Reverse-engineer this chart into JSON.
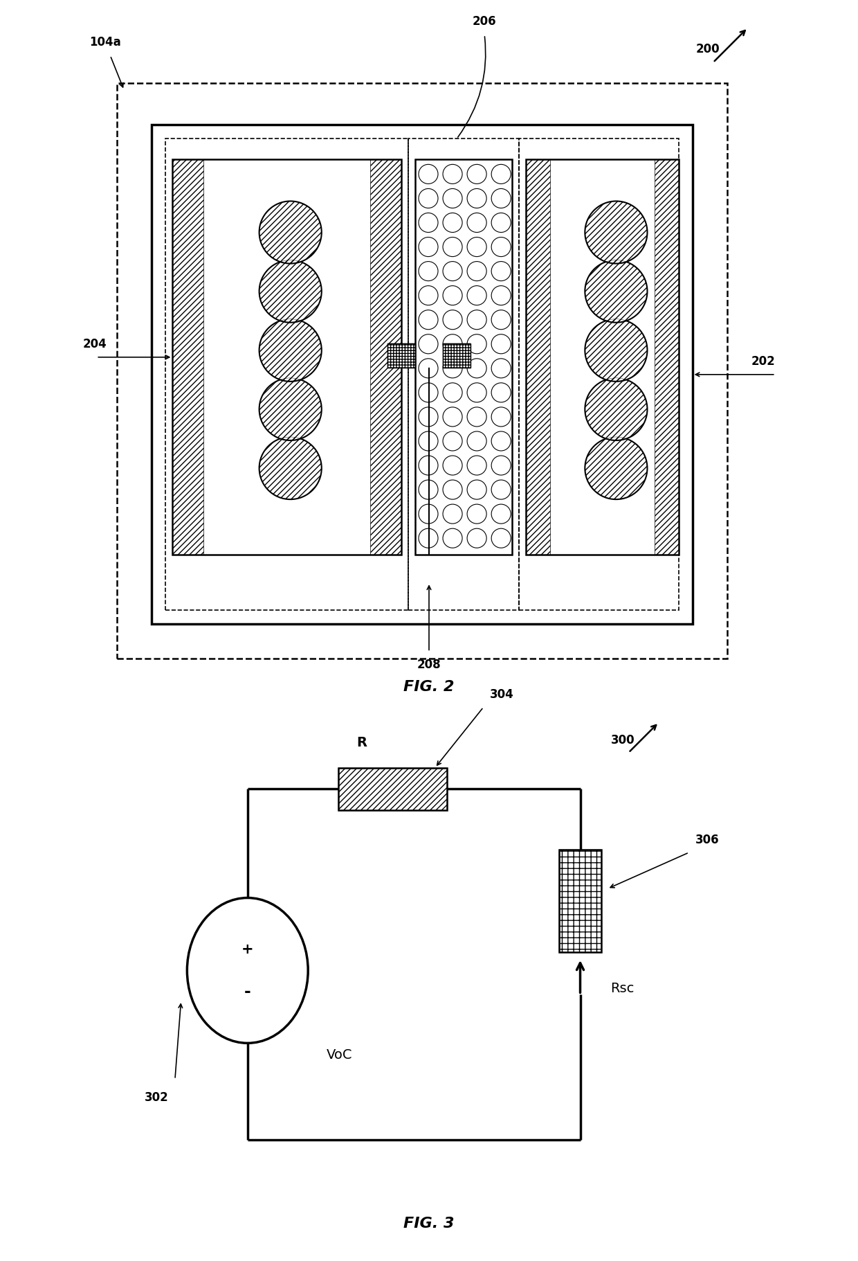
{
  "fig_width": 12.4,
  "fig_height": 18.21,
  "bg_color": "#ffffff",
  "line_color": "#000000",
  "fig2": {
    "label": "FIG. 2",
    "ref_200": "200",
    "ref_104a": "104a",
    "ref_202": "202",
    "ref_204": "204",
    "ref_206": "206",
    "ref_208": "208"
  },
  "fig3": {
    "label": "FIG. 3",
    "ref_300": "300",
    "ref_302": "302",
    "ref_304": "304",
    "ref_306": "306",
    "voc_label": "VoC",
    "r_label": "R",
    "rsc_label": "Rsc",
    "plus_label": "+",
    "minus_label": "-"
  }
}
